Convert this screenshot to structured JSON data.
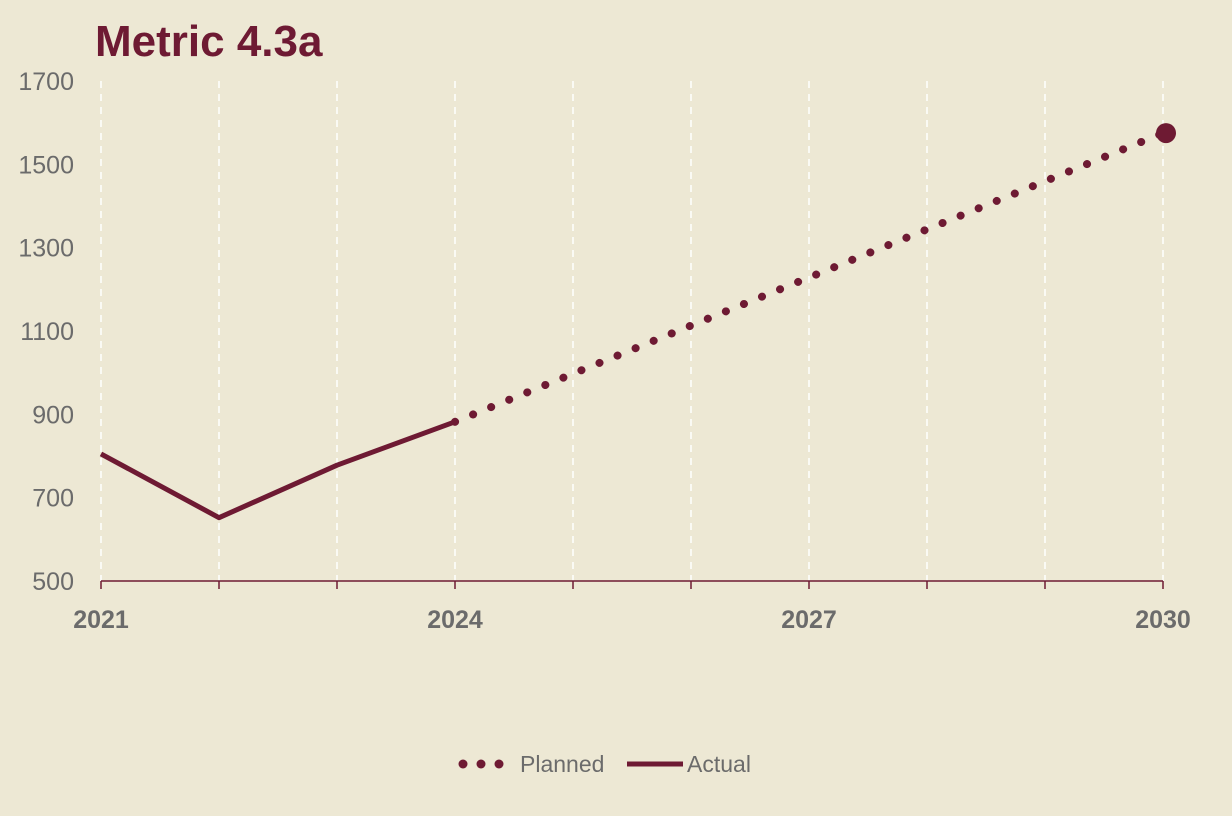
{
  "colors": {
    "background": "#ede8d4",
    "series": "#6e1a33",
    "axis_text": "#6b6b6b",
    "grid": "#ffffff"
  },
  "chart_data": {
    "type": "line",
    "title": "Metric 4.3a",
    "xlabel": "",
    "ylabel": "",
    "xlim": [
      2021,
      2030
    ],
    "ylim": [
      500,
      1700
    ],
    "yticks": [
      500,
      700,
      900,
      1100,
      1300,
      1500,
      1700
    ],
    "xticks_labeled": [
      2021,
      2024,
      2027,
      2030
    ],
    "x_gridlines": [
      2021,
      2022,
      2023,
      2024,
      2025,
      2026,
      2027,
      2028,
      2029,
      2030
    ],
    "grid": "vertical dashed",
    "legend_position": "bottom",
    "series": [
      {
        "name": "Planned",
        "style": "dotted",
        "end_marker": true,
        "points": [
          [
            2024,
            882
          ],
          [
            2030,
            1575
          ]
        ]
      },
      {
        "name": "Actual",
        "style": "solid",
        "points": [
          [
            2021,
            805
          ],
          [
            2022,
            652
          ],
          [
            2023,
            778
          ],
          [
            2024,
            882
          ]
        ]
      }
    ]
  }
}
